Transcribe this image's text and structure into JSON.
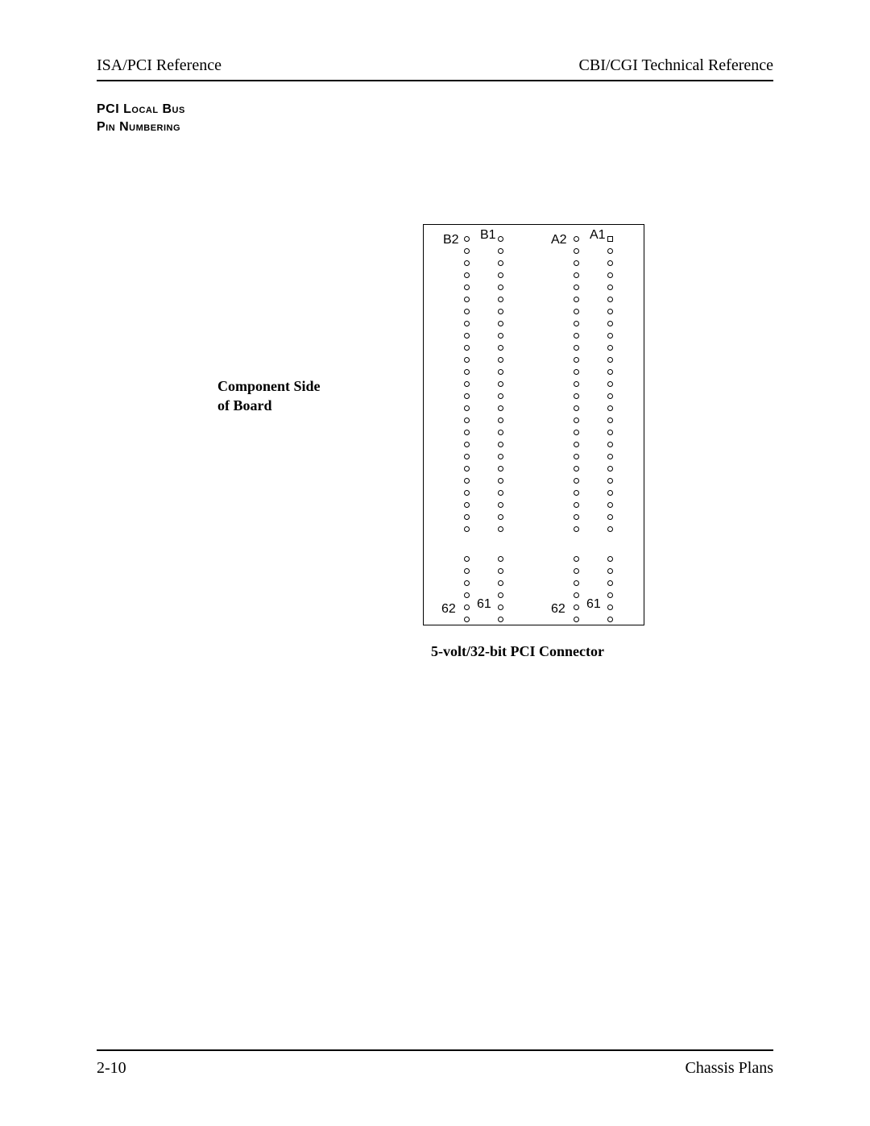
{
  "header": {
    "left": "ISA/PCI Reference",
    "right": "CBI/CGI Technical Reference"
  },
  "section": {
    "line1": "PCI Local Bus",
    "line2": "Pin Numbering"
  },
  "diagram": {
    "component_label_line1": "Component Side",
    "component_label_line2": "of Board",
    "connector": {
      "columns": {
        "B2": {
          "top_label": "B2",
          "top_pin_shape": "circle",
          "upper_count": 25,
          "lower_count": 6,
          "bottom_label": "62"
        },
        "B1": {
          "top_label": "B1",
          "top_pin_shape": "circle",
          "upper_count": 25,
          "lower_count": 6,
          "bottom_label": "61"
        },
        "A2": {
          "top_label": "A2",
          "top_pin_shape": "circle",
          "upper_count": 25,
          "lower_count": 6,
          "bottom_label": "62"
        },
        "A1": {
          "top_label": "A1",
          "top_pin_shape": "square",
          "upper_count": 25,
          "lower_count": 6,
          "bottom_label": "61"
        }
      },
      "border_color": "#000000",
      "pin_color": "#000000",
      "background": "#ffffff"
    },
    "caption": "5-volt/32-bit PCI Connector"
  },
  "footer": {
    "left": "2-10",
    "right": "Chassis Plans"
  }
}
